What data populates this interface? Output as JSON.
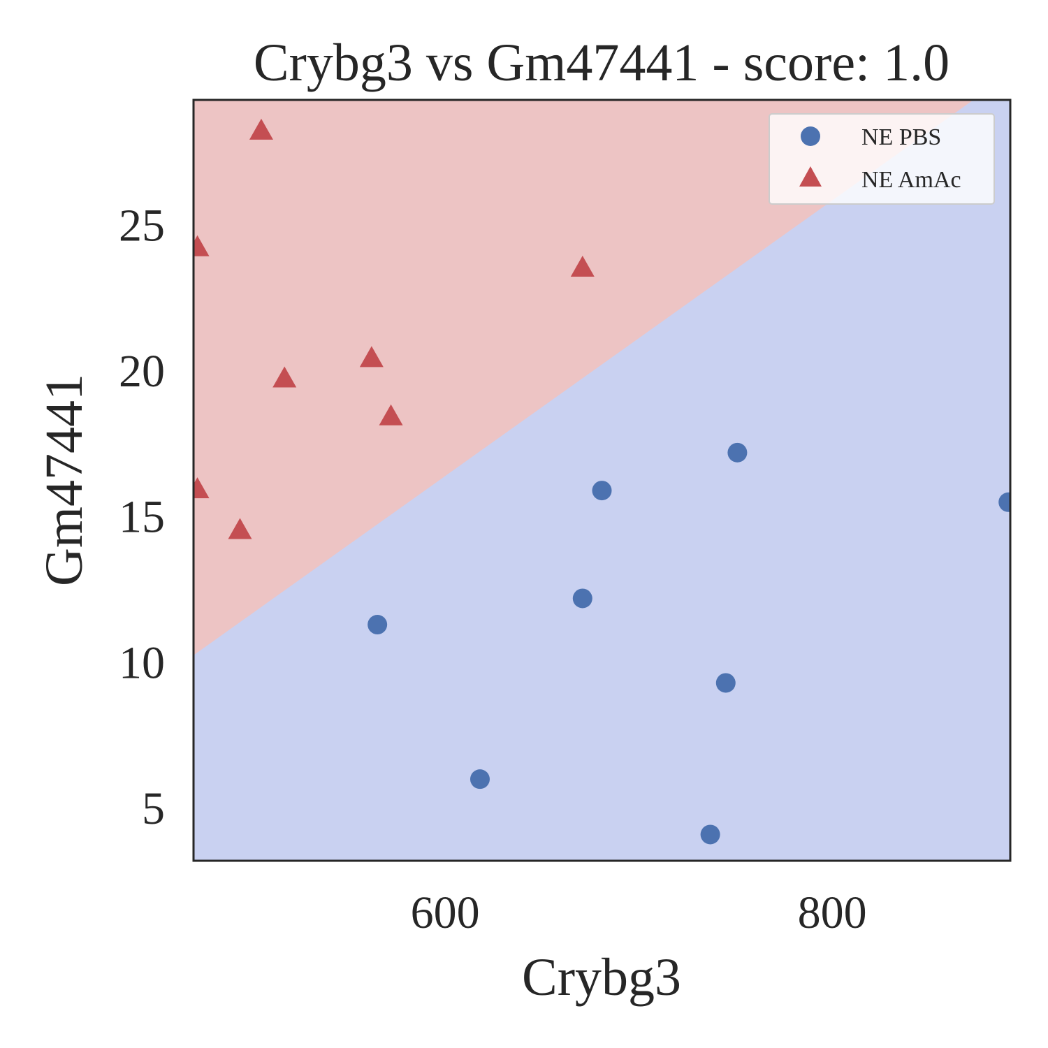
{
  "chart_data": {
    "type": "scatter",
    "title": "Crybg3 vs Gm47441 - score: 1.0",
    "xlabel": "Crybg3",
    "ylabel": "Gm47441",
    "xlim": [
      470,
      892
    ],
    "ylim": [
      3.2,
      29.3
    ],
    "xticks": [
      600,
      800
    ],
    "yticks": [
      5,
      10,
      15,
      20,
      25
    ],
    "grid": false,
    "legend_position": "top-right",
    "colors": {
      "pbs": "#4c72b0",
      "amac": "#c44e52",
      "region_pbs": "#c9d1f1",
      "region_amac": "#edc4c4",
      "axes": "#262626"
    },
    "boundary": {
      "x": [
        470,
        892
      ],
      "y": [
        10.25,
        30.2
      ]
    },
    "series": [
      {
        "name": "NE PBS",
        "marker": "circle",
        "x": [
          565,
          618,
          671,
          681,
          737,
          745,
          751,
          891
        ],
        "y": [
          11.3,
          6.0,
          12.2,
          15.9,
          4.1,
          9.3,
          17.2,
          15.5
        ]
      },
      {
        "name": "NE AmAc",
        "marker": "triangle",
        "x": [
          472,
          472,
          494,
          505,
          517,
          562,
          572,
          671
        ],
        "y": [
          24.2,
          15.9,
          14.5,
          28.2,
          19.7,
          20.4,
          18.4,
          23.5
        ]
      }
    ]
  }
}
